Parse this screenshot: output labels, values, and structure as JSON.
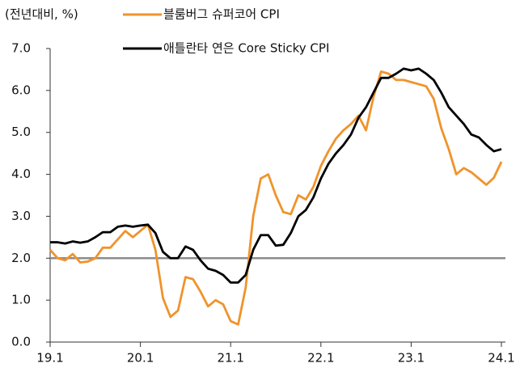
{
  "chart_data": {
    "type": "line",
    "y_unit_label": "(전년대비, %)",
    "categories": [
      "19.1",
      null,
      null,
      null,
      null,
      null,
      null,
      null,
      null,
      null,
      null,
      null,
      "20.1",
      null,
      null,
      null,
      null,
      null,
      null,
      null,
      null,
      null,
      null,
      null,
      "21.1",
      null,
      null,
      null,
      null,
      null,
      null,
      null,
      null,
      null,
      null,
      null,
      "22.1",
      null,
      null,
      null,
      null,
      null,
      null,
      null,
      null,
      null,
      null,
      null,
      "23.1",
      null,
      null,
      null,
      null,
      null,
      null,
      null,
      null,
      null,
      null,
      null,
      "24.1"
    ],
    "series": [
      {
        "name": "블룸버그 슈퍼코어 CPI",
        "color": "#f0932b",
        "values": [
          2.2,
          2.0,
          1.95,
          2.1,
          1.9,
          1.92,
          2.0,
          2.25,
          2.25,
          2.45,
          2.65,
          2.5,
          2.65,
          2.8,
          2.2,
          1.05,
          0.6,
          0.75,
          1.55,
          1.5,
          1.2,
          0.85,
          1.0,
          0.9,
          0.5,
          0.42,
          1.3,
          3.0,
          3.9,
          4.0,
          3.5,
          3.1,
          3.05,
          3.5,
          3.4,
          3.7,
          4.2,
          4.55,
          4.85,
          5.05,
          5.2,
          5.4,
          5.05,
          5.85,
          6.45,
          6.4,
          6.25,
          6.25,
          6.2,
          6.15,
          6.1,
          5.8,
          5.1,
          4.6,
          4.0,
          4.15,
          4.05,
          3.9,
          3.75,
          3.92,
          4.3
        ]
      },
      {
        "name": "애틀란타 연은 Core Sticky CPI",
        "color": "#000000",
        "values": [
          2.38,
          2.38,
          2.35,
          2.4,
          2.37,
          2.4,
          2.5,
          2.62,
          2.62,
          2.75,
          2.78,
          2.75,
          2.78,
          2.8,
          2.6,
          2.15,
          2.0,
          2.0,
          2.28,
          2.2,
          1.95,
          1.75,
          1.7,
          1.6,
          1.42,
          1.42,
          1.6,
          2.2,
          2.55,
          2.55,
          2.3,
          2.32,
          2.6,
          3.0,
          3.15,
          3.45,
          3.9,
          4.25,
          4.5,
          4.7,
          4.95,
          5.35,
          5.6,
          5.95,
          6.3,
          6.3,
          6.4,
          6.52,
          6.48,
          6.52,
          6.4,
          6.25,
          5.95,
          5.6,
          5.4,
          5.2,
          4.95,
          4.88,
          4.7,
          4.55,
          4.6
        ]
      }
    ],
    "reference_line": {
      "value": 2,
      "color": "#8c8c8c"
    },
    "ylim": [
      0,
      7
    ],
    "yticks": [
      {
        "value": 0,
        "label": "0.0"
      },
      {
        "value": 1,
        "label": "1.0"
      },
      {
        "value": 2,
        "label": "2.0"
      },
      {
        "value": 3,
        "label": "3.0"
      },
      {
        "value": 4,
        "label": "4.0"
      },
      {
        "value": 5,
        "label": "5.0"
      },
      {
        "value": 6,
        "label": "6.0"
      },
      {
        "value": 7,
        "label": "7.0"
      }
    ],
    "grid": false
  }
}
